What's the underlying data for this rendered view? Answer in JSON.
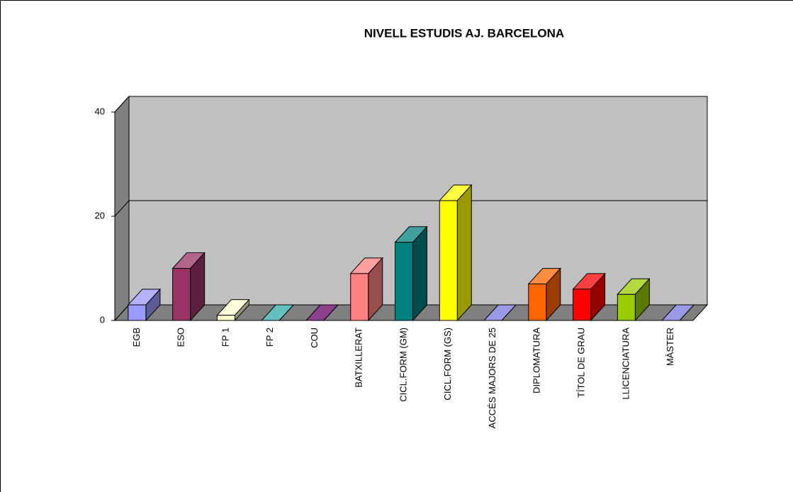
{
  "chart_data": {
    "type": "bar",
    "three_d": true,
    "title": "NIVELL ESTUDIS AJ. BARCELONA",
    "categories": [
      "EGB",
      "ESO",
      "FP 1",
      "FP 2",
      "COU",
      "BATXILLERAT",
      "CICL.FORM (GM)",
      "CICL.FORM (GS)",
      "ACCÉS MAJORS DE 25",
      "DIPLOMATURA",
      "TÍTOL DE GRAU",
      "LLICENCIATURA",
      "MÀSTER"
    ],
    "values": [
      3,
      10,
      1,
      0,
      0,
      9,
      15,
      23,
      0,
      7,
      6,
      5,
      0
    ],
    "colors": [
      "#9999ff",
      "#993366",
      "#ffffcc",
      "#33aaaa",
      "#660066",
      "#ff8080",
      "#008080",
      "#ffff00",
      "#7777dd",
      "#ff6600",
      "#ff0000",
      "#99cc00",
      "#7777dd"
    ],
    "ylim": [
      0,
      40
    ],
    "yticks": [
      0,
      20,
      40
    ],
    "grid": true
  }
}
